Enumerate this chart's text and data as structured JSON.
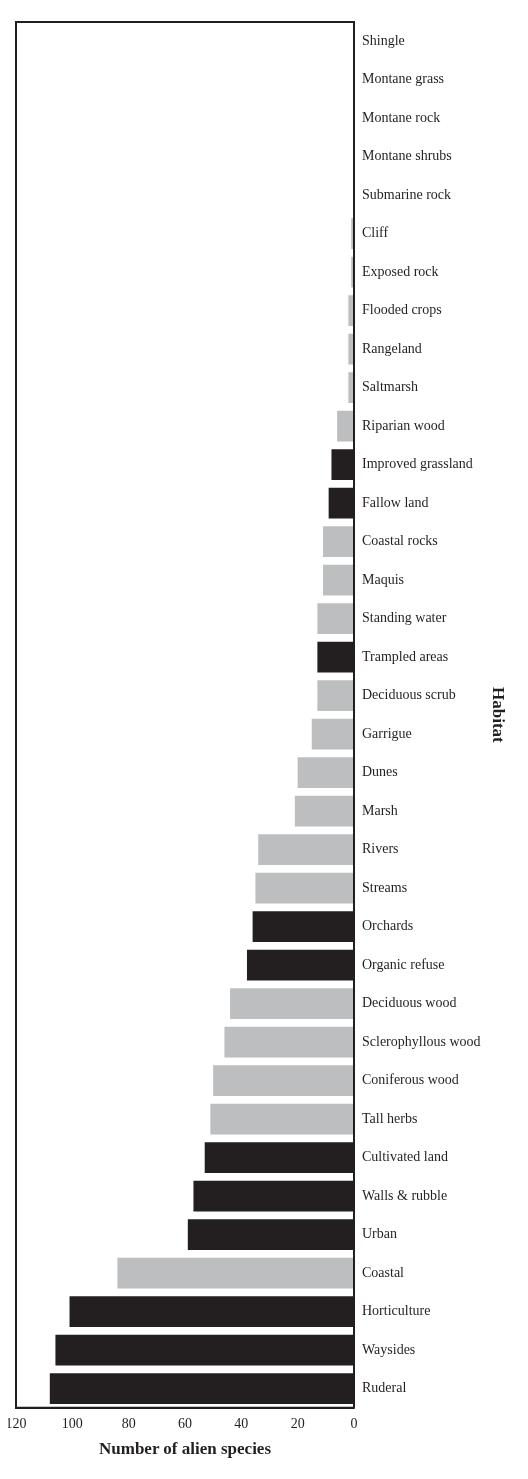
{
  "chart_data": {
    "type": "bar",
    "orientation": "horizontal",
    "xlabel": "Number of alien species",
    "ylabel": "Habitat",
    "categories": [
      "Shingle",
      "Montane grass",
      "Montane rock",
      "Montane shrubs",
      "Submarine rock",
      "Cliff",
      "Exposed rock",
      "Flooded crops",
      "Rangeland",
      "Saltmarsh",
      "Riparian wood",
      "Improved grassland",
      "Fallow land",
      "Coastal rocks",
      "Maquis",
      "Standing water",
      "Trampled areas",
      "Deciduous scrub",
      "Garrigue",
      "Dunes",
      "Marsh",
      "Rivers",
      "Streams",
      "Orchards",
      "Organic refuse",
      "Deciduous wood",
      "Sclerophyllous wood",
      "Coniferous wood",
      "Tall herbs",
      "Cultivated land",
      "Walls & rubble",
      "Urban",
      "Coastal",
      "Horticulture",
      "Waysides",
      "Ruderal"
    ],
    "values": [
      0,
      0,
      0,
      0,
      0,
      1,
      1,
      2,
      2,
      2,
      6,
      8,
      9,
      11,
      11,
      13,
      13,
      13,
      15,
      20,
      21,
      34,
      35,
      36,
      38,
      44,
      46,
      50,
      51,
      53,
      57,
      59,
      84,
      101,
      106,
      108
    ],
    "colors": [
      "#bcbec0",
      "#bcbec0",
      "#bcbec0",
      "#bcbec0",
      "#bcbec0",
      "#bcbec0",
      "#bcbec0",
      "#bcbec0",
      "#bcbec0",
      "#bcbec0",
      "#bcbec0",
      "#231f20",
      "#231f20",
      "#bcbec0",
      "#bcbec0",
      "#bcbec0",
      "#231f20",
      "#bcbec0",
      "#bcbec0",
      "#bcbec0",
      "#bcbec0",
      "#bcbec0",
      "#bcbec0",
      "#231f20",
      "#231f20",
      "#bcbec0",
      "#bcbec0",
      "#bcbec0",
      "#bcbec0",
      "#231f20",
      "#231f20",
      "#231f20",
      "#bcbec0",
      "#231f20",
      "#231f20",
      "#231f20"
    ],
    "xlim": [
      120,
      0
    ],
    "xticks": [
      0,
      20,
      40,
      60,
      80,
      100,
      120
    ],
    "grid": false,
    "legend": false
  }
}
